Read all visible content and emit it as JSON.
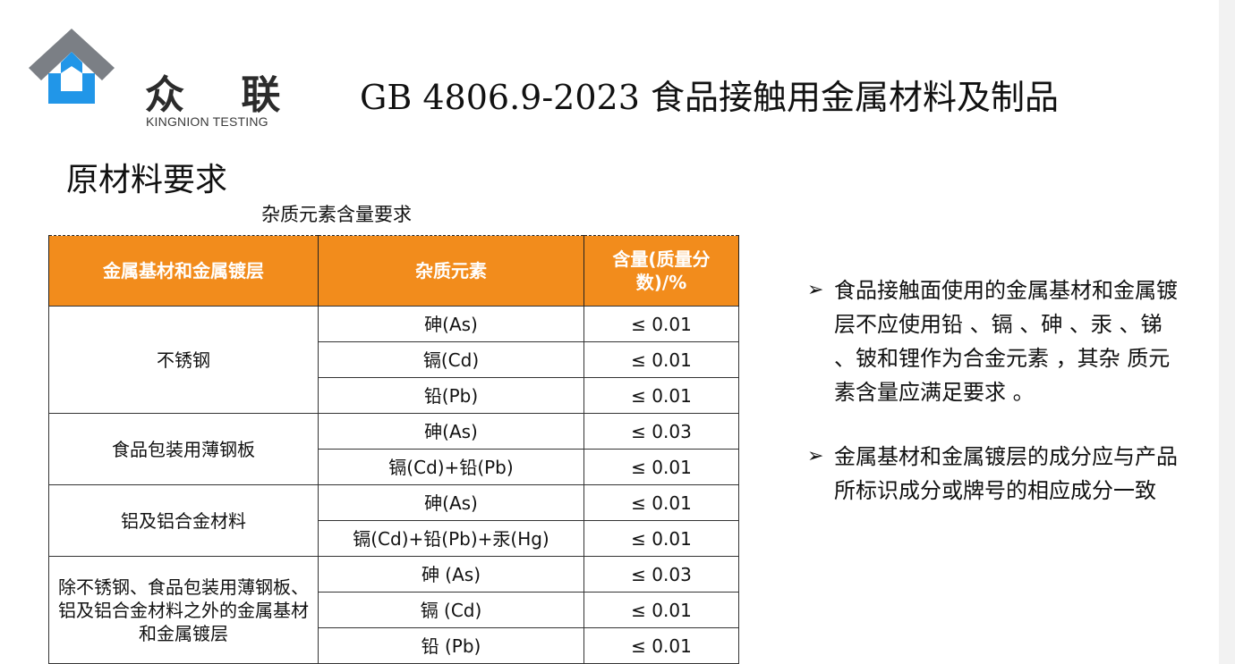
{
  "logo": {
    "name_cn": "众 联",
    "name_en": "KINGNION TESTING",
    "colors": {
      "gray": "#7b7f85",
      "blue": "#2196e8"
    }
  },
  "header": {
    "title": "GB 4806.9-2023 食品接触用金属材料及制品"
  },
  "section": {
    "heading": "原材料要求",
    "table_caption": "杂质元素含量要求"
  },
  "table": {
    "header_color": "#f28c1c",
    "headers": [
      "金属基材和金属镀层",
      "杂质元素",
      "含量(质量分数)/%"
    ],
    "groups": [
      {
        "material": "不锈钢",
        "rows": [
          {
            "element": "砷(As)",
            "limit": "≤ 0.01"
          },
          {
            "element": "镉(Cd)",
            "limit": "≤ 0.01"
          },
          {
            "element": "铅(Pb)",
            "limit": "≤ 0.01"
          }
        ]
      },
      {
        "material": "食品包装用薄钢板",
        "rows": [
          {
            "element": "砷(As)",
            "limit": "≤ 0.03"
          },
          {
            "element": "镉(Cd)+铅(Pb)",
            "limit": "≤ 0.01"
          }
        ]
      },
      {
        "material": "铝及铝合金材料",
        "rows": [
          {
            "element": "砷(As)",
            "limit": "≤ 0.01"
          },
          {
            "element": "镉(Cd)+铅(Pb)+汞(Hg)",
            "limit": "≤ 0.01"
          }
        ]
      },
      {
        "material": "除不锈钢、食品包装用薄钢板、铝及铝合金材料之外的金属基材和金属镀层",
        "rows": [
          {
            "element": "砷 (As)",
            "limit": "≤ 0.03"
          },
          {
            "element": "镉 (Cd)",
            "limit": "≤ 0.01"
          },
          {
            "element": "铅 (Pb)",
            "limit": "≤ 0.01"
          }
        ]
      }
    ]
  },
  "notes": [
    {
      "icon": "arrow-bullet-icon",
      "bullet": "➢",
      "text": "食品接触面使用的金属基材和金属镀层不应使用铅 、镉 、砷 、汞 、锑 、铍和锂作为合金元素 ，其杂 质元素含量应满足要求 。"
    },
    {
      "icon": "arrow-bullet-icon",
      "bullet": "➢",
      "text": "金属基材和金属镀层的成分应与产品所标识成分或牌号的相应成分一致"
    }
  ]
}
